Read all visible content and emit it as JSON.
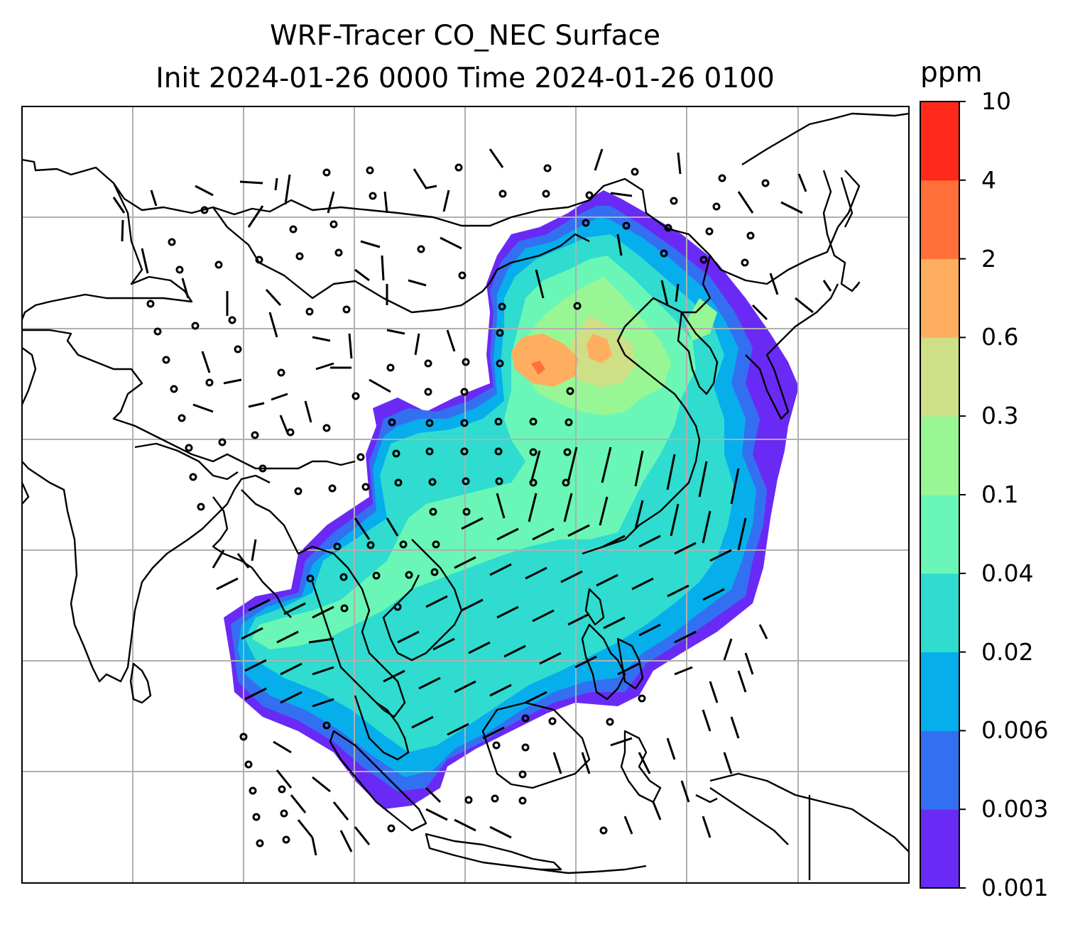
{
  "title": {
    "line1": "WRF-Tracer CO_NEC Surface",
    "line2": "Init 2024-01-26 0000 Time 2024-01-26 0100"
  },
  "colorbar": {
    "units": "ppm",
    "levels": [
      "0.001",
      "0.003",
      "0.006",
      "0.02",
      "0.04",
      "0.1",
      "0.3",
      "0.6",
      "2",
      "4",
      "10"
    ],
    "colors": [
      "#6a2af5",
      "#3370f1",
      "#07aeec",
      "#2fdccf",
      "#6af6b6",
      "#98f794",
      "#cfdf85",
      "#ffae5f",
      "#ff7139",
      "#ff2a19"
    ]
  },
  "map": {
    "field": "CO_NEC",
    "gridline_color": "#b0b0b0",
    "coastline_color": "#000000",
    "wind_barb_color": "#000000"
  }
}
